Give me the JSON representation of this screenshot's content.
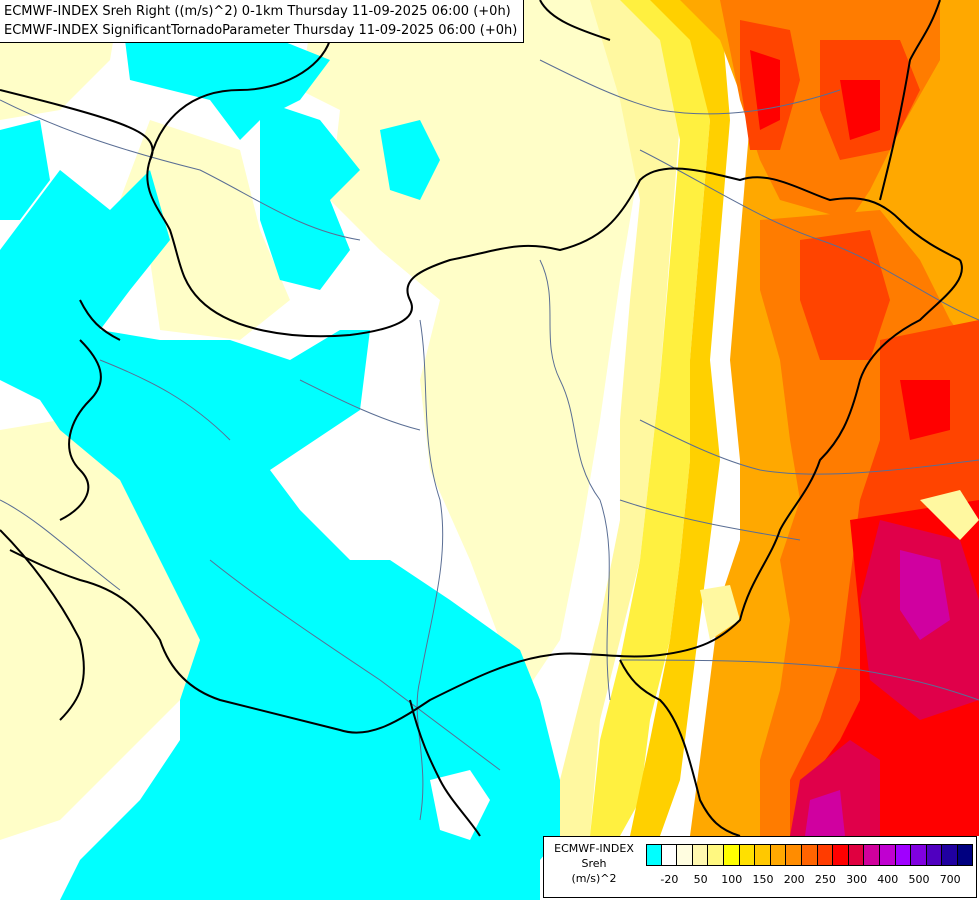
{
  "header": {
    "line1": "ECMWF-INDEX Sreh Right ((m/s)^2) 0-1km Thursday 11-09-2025 06:00 (+0h)",
    "line2": "ECMWF-INDEX SignificantTornadoParameter Thursday 11-09-2025 06:00 (+0h)"
  },
  "legend": {
    "title_line1": "ECMWF-INDEX",
    "title_line2": "Sreh",
    "title_line3": "(m/s)^2",
    "colors": [
      "#00ffff",
      "#ffffff",
      "#fffde0",
      "#fff8b0",
      "#fff880",
      "#ffff00",
      "#ffe000",
      "#ffc800",
      "#ffa800",
      "#ff8c00",
      "#ff6400",
      "#ff3c00",
      "#ff0000",
      "#e00040",
      "#d0009c",
      "#c000d0",
      "#a000ff",
      "#8000e0",
      "#5000c0",
      "#2000a0",
      "#000080"
    ],
    "ticks": [
      "-20",
      "50",
      "100",
      "150",
      "200",
      "250",
      "300",
      "400",
      "500",
      "700"
    ]
  },
  "map": {
    "background": "#ffffff",
    "palette": {
      "cyan": "#00ffff",
      "pale": "#fffec8",
      "lightyellow": "#fff8a0",
      "yellow": "#fff040",
      "gold": "#ffd000",
      "orange": "#ffa800",
      "darkorange": "#ff7c00",
      "redorange": "#ff4400",
      "red": "#ff0000",
      "crimson": "#e0004a",
      "magenta": "#d000a0"
    }
  }
}
